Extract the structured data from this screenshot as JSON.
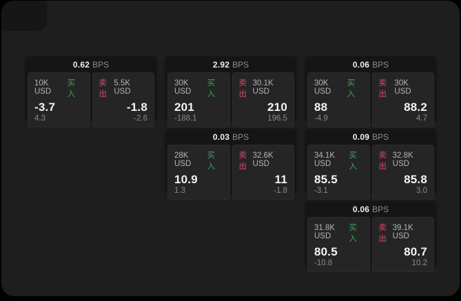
{
  "labels": {
    "bps_unit": "BPS",
    "buy": "买入",
    "sell": "卖出"
  },
  "colors": {
    "buy_accent": "#3ca35c",
    "sell_accent": "#de4a6a",
    "window_bg": "#1e1e1e",
    "card_bg": "#151515",
    "panel_bg": "#252525"
  },
  "cards": [
    {
      "bps": "0.62",
      "col": 0,
      "row": 0,
      "buy": {
        "amount": "10K USD",
        "price": "-3.7",
        "sub": "4.3"
      },
      "sell": {
        "amount": "5.5K USD",
        "price": "-1.8",
        "sub": "-2.6"
      }
    },
    {
      "bps": "2.92",
      "col": 1,
      "row": 0,
      "buy": {
        "amount": "30K USD",
        "price": "201",
        "sub": "-188.1"
      },
      "sell": {
        "amount": "30.1K USD",
        "price": "210",
        "sub": "196.5"
      }
    },
    {
      "bps": "0.06",
      "col": 2,
      "row": 0,
      "buy": {
        "amount": "30K USD",
        "price": "88",
        "sub": "-4.9"
      },
      "sell": {
        "amount": "30K USD",
        "price": "88.2",
        "sub": "4.7"
      }
    },
    {
      "bps": "0.03",
      "col": 1,
      "row": 1,
      "buy": {
        "amount": "28K USD",
        "price": "10.9",
        "sub": "1.3"
      },
      "sell": {
        "amount": "32.6K USD",
        "price": "11",
        "sub": "-1.8"
      }
    },
    {
      "bps": "0.09",
      "col": 2,
      "row": 1,
      "buy": {
        "amount": "34.1K USD",
        "price": "85.5",
        "sub": "-3.1"
      },
      "sell": {
        "amount": "32.8K USD",
        "price": "85.8",
        "sub": "3.0"
      }
    },
    {
      "bps": "0.06",
      "col": 2,
      "row": 2,
      "buy": {
        "amount": "31.8K USD",
        "price": "80.5",
        "sub": "-10.8"
      },
      "sell": {
        "amount": "39.1K USD",
        "price": "80.7",
        "sub": "10.2"
      }
    }
  ]
}
